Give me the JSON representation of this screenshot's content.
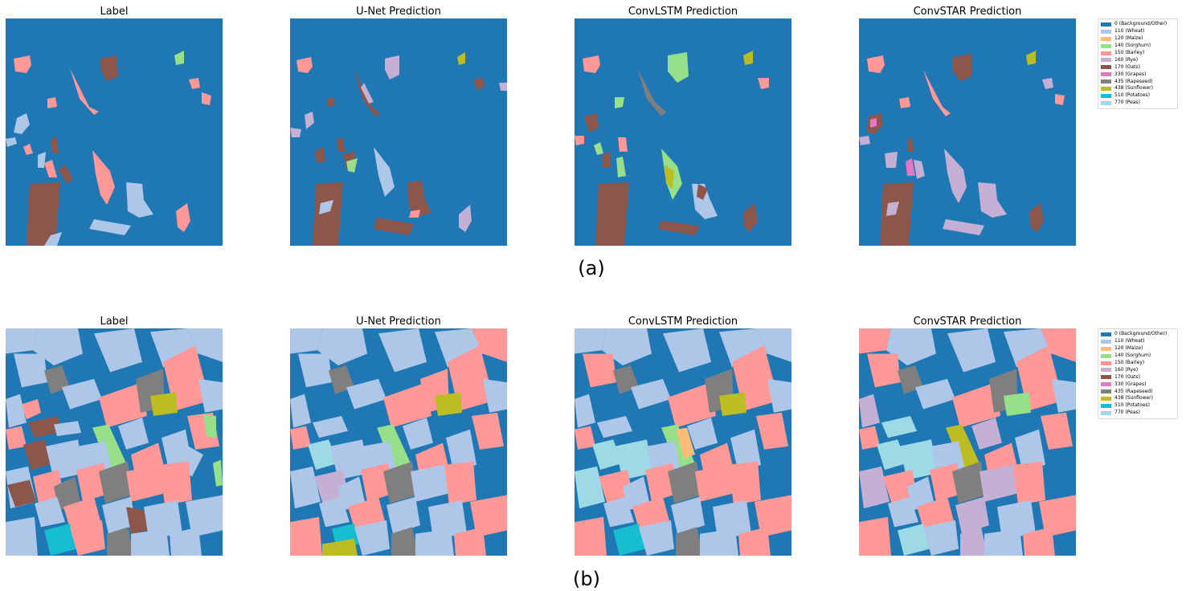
{
  "rows": [
    {
      "caption": "(a)",
      "panels": [
        {
          "title": "Label",
          "icon": "crop-label-map-a"
        },
        {
          "title": "U-Net Prediction",
          "icon": "crop-prediction-map-unet-a"
        },
        {
          "title": "ConvLSTM Prediction",
          "icon": "crop-prediction-map-convlstm-a"
        },
        {
          "title": "ConvSTAR Prediction",
          "icon": "crop-prediction-map-convstar-a"
        }
      ]
    },
    {
      "caption": "(b)",
      "panels": [
        {
          "title": "Label",
          "icon": "crop-label-map-b"
        },
        {
          "title": "U-Net Prediction",
          "icon": "crop-prediction-map-unet-b"
        },
        {
          "title": "ConvLSTM Prediction",
          "icon": "crop-prediction-map-convlstm-b"
        },
        {
          "title": "ConvSTAR Prediction",
          "icon": "crop-prediction-map-convstar-b"
        }
      ]
    }
  ],
  "legend": [
    {
      "label": "0 (Background/Other)",
      "color": "#1f77b4"
    },
    {
      "label": "110 (Wheat)",
      "color": "#aec7e8"
    },
    {
      "label": "120 (Maize)",
      "color": "#ffbb78"
    },
    {
      "label": "140 (Sorghum)",
      "color": "#98df8a"
    },
    {
      "label": "150 (Barley)",
      "color": "#ff9896"
    },
    {
      "label": "160 (Rye)",
      "color": "#c5b0d5"
    },
    {
      "label": "170 (Oats)",
      "color": "#8c564b"
    },
    {
      "label": "330 (Grapes)",
      "color": "#e377c2"
    },
    {
      "label": "435 (Rapeseed)",
      "color": "#7f7f7f"
    },
    {
      "label": "438 (Sunflower)",
      "color": "#bcbd22"
    },
    {
      "label": "510 (Potatoes)",
      "color": "#17becf"
    },
    {
      "label": "770 (Peas)",
      "color": "#9edae5"
    }
  ]
}
